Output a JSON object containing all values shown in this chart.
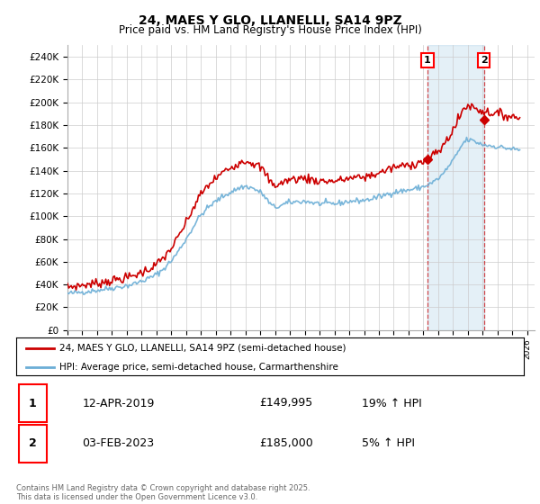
{
  "title": "24, MAES Y GLO, LLANELLI, SA14 9PZ",
  "subtitle": "Price paid vs. HM Land Registry's House Price Index (HPI)",
  "ylim": [
    0,
    250000
  ],
  "yticks": [
    0,
    20000,
    40000,
    60000,
    80000,
    100000,
    120000,
    140000,
    160000,
    180000,
    200000,
    220000,
    240000
  ],
  "ytick_labels": [
    "£0",
    "£20K",
    "£40K",
    "£60K",
    "£80K",
    "£100K",
    "£120K",
    "£140K",
    "£160K",
    "£180K",
    "£200K",
    "£220K",
    "£240K"
  ],
  "hpi_color": "#6baed6",
  "hpi_fill_color": "#d6e8f5",
  "price_color": "#cc0000",
  "vline_color": "#cc0000",
  "legend_label1": "24, MAES Y GLO, LLANELLI, SA14 9PZ (semi-detached house)",
  "legend_label2": "HPI: Average price, semi-detached house, Carmarthenshire",
  "footer": "Contains HM Land Registry data © Crown copyright and database right 2025.\nThis data is licensed under the Open Government Licence v3.0.",
  "sale1_date": "12-APR-2019",
  "sale1_price": "£149,995",
  "sale1_hpi": "19% ↑ HPI",
  "sale1_x": 2019.28,
  "sale1_y": 149995,
  "sale2_date": "03-FEB-2023",
  "sale2_price": "£185,000",
  "sale2_hpi": "5% ↑ HPI",
  "sale2_x": 2023.09,
  "sale2_y": 185000,
  "xlim_start": 1995,
  "xlim_end": 2026.5,
  "background_color": "#ffffff",
  "grid_color": "#cccccc"
}
